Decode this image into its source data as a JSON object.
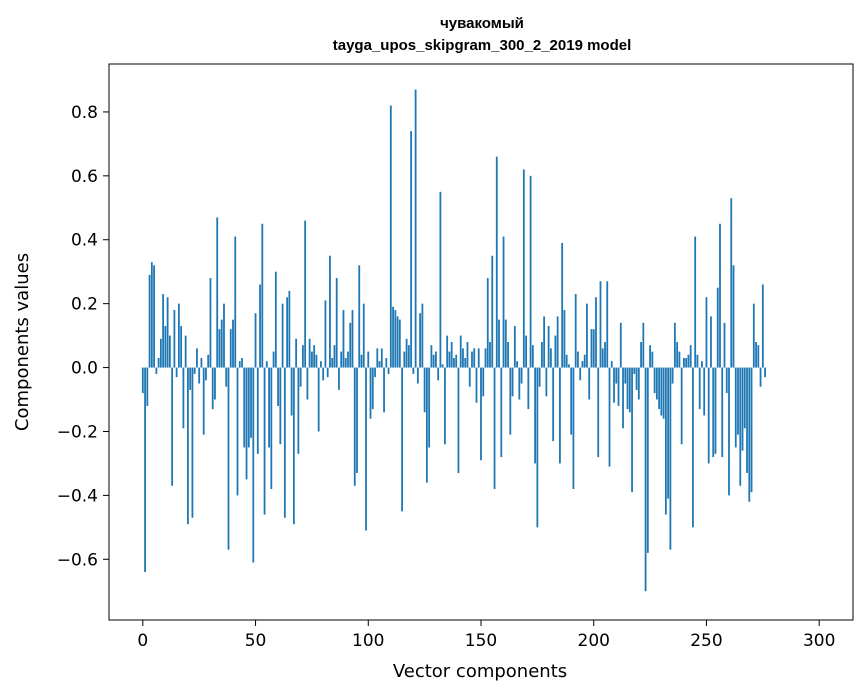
{
  "chart_data": {
    "type": "bar",
    "title": "чувакомый",
    "subtitle": "tayga_upos_skipgram_300_2_2019 model",
    "xlabel": "Vector components",
    "ylabel": "Components values",
    "xlim": [
      -15,
      315
    ],
    "ylim": [
      -0.79,
      0.95
    ],
    "xticks": [
      0,
      50,
      100,
      150,
      200,
      250,
      300
    ],
    "yticks": [
      -0.6,
      -0.4,
      -0.2,
      0.0,
      0.2,
      0.4,
      0.6,
      0.8
    ],
    "ytick_labels": [
      "−0.6",
      "−0.4",
      "−0.2",
      "0.0",
      "0.2",
      "0.4",
      "0.6",
      "0.8"
    ],
    "grid": false,
    "bar_color": "#1f77b4",
    "values": [
      -0.08,
      -0.64,
      -0.12,
      0.29,
      0.33,
      0.32,
      -0.02,
      0.03,
      0.09,
      0.23,
      0.13,
      0.22,
      0.1,
      -0.37,
      0.18,
      -0.03,
      0.2,
      0.13,
      -0.19,
      0.1,
      -0.49,
      -0.07,
      -0.47,
      -0.02,
      0.06,
      -0.05,
      0.03,
      -0.21,
      -0.04,
      0.04,
      0.28,
      -0.13,
      -0.1,
      0.47,
      0.12,
      0.15,
      0.2,
      -0.06,
      -0.57,
      0.12,
      0.15,
      0.41,
      -0.4,
      0.02,
      0.03,
      -0.25,
      -0.35,
      -0.25,
      -0.22,
      -0.61,
      0.17,
      -0.27,
      0.26,
      0.45,
      -0.46,
      0.02,
      -0.25,
      -0.38,
      0.05,
      0.3,
      -0.12,
      -0.24,
      0.2,
      -0.47,
      0.22,
      0.24,
      -0.15,
      -0.49,
      0.09,
      -0.27,
      -0.06,
      0.07,
      0.46,
      -0.1,
      0.09,
      0.05,
      0.07,
      0.04,
      -0.2,
      0.02,
      -0.04,
      0.21,
      -0.03,
      0.35,
      0.03,
      0.07,
      0.28,
      -0.07,
      0.05,
      0.18,
      0.03,
      0.05,
      0.14,
      0.18,
      -0.37,
      -0.33,
      0.32,
      0.04,
      0.2,
      -0.51,
      0.05,
      -0.16,
      -0.13,
      -0.03,
      0.06,
      0.02,
      0.06,
      -0.14,
      0.03,
      -0.02,
      0.82,
      0.19,
      0.18,
      0.16,
      0.15,
      -0.45,
      0.05,
      0.09,
      0.07,
      0.74,
      -0.02,
      0.87,
      -0.05,
      0.17,
      0.2,
      -0.14,
      -0.36,
      -0.25,
      0.07,
      0.04,
      0.05,
      -0.04,
      0.55,
      0.01,
      -0.24,
      0.1,
      0.05,
      0.08,
      0.03,
      0.04,
      -0.33,
      0.1,
      0.06,
      0.03,
      0.08,
      -0.06,
      0.05,
      0.06,
      -0.11,
      0.06,
      -0.29,
      -0.09,
      0.06,
      0.28,
      0.08,
      0.35,
      -0.38,
      0.66,
      0.15,
      -0.28,
      0.41,
      0.15,
      0.08,
      -0.21,
      -0.09,
      0.13,
      0.02,
      -0.1,
      -0.05,
      0.62,
      0.1,
      -0.13,
      0.6,
      0.07,
      -0.3,
      -0.5,
      -0.06,
      0.08,
      0.16,
      -0.09,
      0.13,
      0.06,
      -0.23,
      0.1,
      0.16,
      -0.3,
      0.39,
      0.18,
      0.04,
      0.01,
      -0.21,
      -0.38,
      0.23,
      0.05,
      -0.04,
      0.02,
      0.04,
      0.2,
      -0.1,
      0.12,
      0.12,
      0.22,
      -0.28,
      0.27,
      0.06,
      0.08,
      0.27,
      -0.31,
      0.02,
      -0.11,
      -0.05,
      -0.12,
      0.14,
      -0.19,
      -0.05,
      -0.13,
      -0.14,
      -0.39,
      -0.02,
      -0.07,
      -0.1,
      0.08,
      0.14,
      -0.7,
      -0.58,
      0.07,
      0.05,
      -0.08,
      -0.1,
      -0.13,
      -0.15,
      -0.16,
      -0.46,
      -0.41,
      -0.57,
      -0.05,
      0.14,
      0.08,
      0.05,
      -0.24,
      0.03,
      0.03,
      0.04,
      0.07,
      -0.5,
      0.41,
      0.04,
      -0.13,
      0.02,
      -0.15,
      0.22,
      -0.3,
      0.16,
      -0.28,
      -0.27,
      0.25,
      0.45,
      -0.28,
      0.14,
      -0.08,
      -0.4,
      0.53,
      0.32,
      -0.25,
      -0.21,
      -0.37,
      -0.26,
      -0.19,
      -0.33,
      -0.42,
      -0.39,
      0.2,
      0.08,
      0.07,
      -0.06,
      0.26,
      -0.03
    ]
  }
}
